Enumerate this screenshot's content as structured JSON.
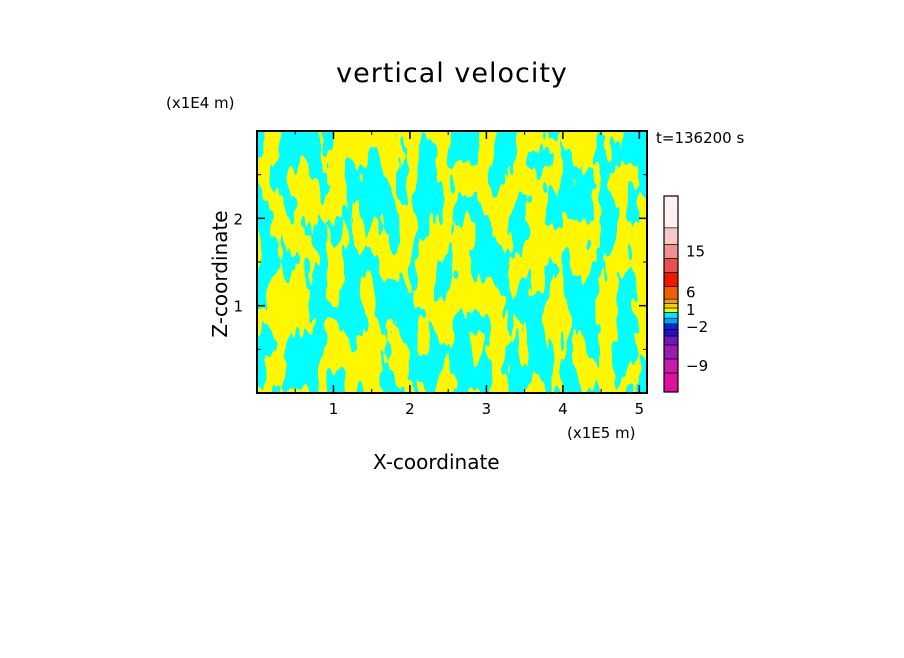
{
  "chart_data": {
    "type": "heatmap",
    "title": "vertical velocity",
    "xlabel": "X-coordinate",
    "ylabel": "Z-coordinate",
    "x_unit": "(x1E5 m)",
    "z_unit": "(x1E4 m)",
    "time_label": "t=136200 s",
    "xlim": [
      0,
      5.1
    ],
    "ylim": [
      0,
      3.0
    ],
    "x_ticks": [
      1,
      2,
      3,
      4,
      5
    ],
    "z_ticks": [
      1,
      2
    ],
    "grid": false,
    "colorbar": {
      "levels": [
        -12,
        -9,
        -6,
        -4,
        -3,
        -2,
        -1,
        0,
        1,
        2,
        3,
        6,
        9,
        12,
        15,
        18,
        21
      ],
      "colors": [
        "#e0109a",
        "#c81aa8",
        "#9b1ab0",
        "#6a1ab8",
        "#2a10c0",
        "#0028e0",
        "#00a0ff",
        "#00e8ff",
        "#f5f500",
        "#f0d000",
        "#f0a000",
        "#f06000",
        "#f01800",
        "#e85050",
        "#f09090",
        "#f8c8c8",
        "#fff0f0"
      ],
      "labels": [
        "-9",
        "-2",
        "1",
        "6",
        "15"
      ],
      "label_values": [
        -9,
        -2,
        1,
        6,
        15
      ]
    },
    "field_colors": {
      "positive": "#ffff00",
      "negative": "#00eeff"
    }
  }
}
